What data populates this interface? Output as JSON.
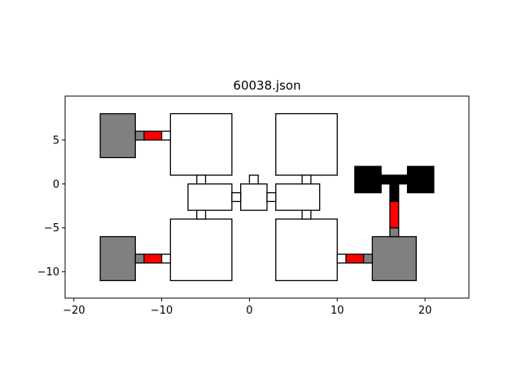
{
  "chart_data": {
    "type": "diagram-plot",
    "title": "60038.json",
    "xlim": [
      -21,
      25
    ],
    "ylim": [
      -13,
      10
    ],
    "xticks": [
      -20,
      -10,
      0,
      10,
      20
    ],
    "yticks": [
      5,
      0,
      -5,
      -10
    ],
    "grid": false,
    "legend": "none",
    "colors": {
      "room": "#ffffff",
      "gray_block": "#808080",
      "red_connector": "#ff0000",
      "black_block": "#000000",
      "outline": "#000000"
    },
    "rects": [
      {
        "x0": -9,
        "x1": -2,
        "y0": 1,
        "y1": 8,
        "fill": "room"
      },
      {
        "x0": 3,
        "x1": 10,
        "y0": 1,
        "y1": 8,
        "fill": "room"
      },
      {
        "x0": -9,
        "x1": -2,
        "y0": -11,
        "y1": -4,
        "fill": "room"
      },
      {
        "x0": 3,
        "x1": 10,
        "y0": -11,
        "y1": -4,
        "fill": "room"
      },
      {
        "x0": -7,
        "x1": -2,
        "y0": -3,
        "y1": 0,
        "fill": "room"
      },
      {
        "x0": -1,
        "x1": 2,
        "y0": -3,
        "y1": 0,
        "fill": "room"
      },
      {
        "x0": 3,
        "x1": 8,
        "y0": -3,
        "y1": 0,
        "fill": "room"
      },
      {
        "x0": -6,
        "x1": -5,
        "y0": 0,
        "y1": 1,
        "fill": "room"
      },
      {
        "x0": 6,
        "x1": 7,
        "y0": 0,
        "y1": 1,
        "fill": "room"
      },
      {
        "x0": -6,
        "x1": -5,
        "y0": -4,
        "y1": -3,
        "fill": "room"
      },
      {
        "x0": 6,
        "x1": 7,
        "y0": -4,
        "y1": -3,
        "fill": "room"
      },
      {
        "x0": 0,
        "x1": 1,
        "y0": 0,
        "y1": 1,
        "fill": "room"
      },
      {
        "x0": -2,
        "x1": -1,
        "y0": -2,
        "y1": -1,
        "fill": "room"
      },
      {
        "x0": 2,
        "x1": 3,
        "y0": -2,
        "y1": -1,
        "fill": "room"
      },
      {
        "x0": -17,
        "x1": -13,
        "y0": 3,
        "y1": 8,
        "fill": "gray_block"
      },
      {
        "x0": -13,
        "x1": -12,
        "y0": 5,
        "y1": 6,
        "fill": "gray_block"
      },
      {
        "x0": -12,
        "x1": -10,
        "y0": 5,
        "y1": 6,
        "fill": "red_connector"
      },
      {
        "x0": -10,
        "x1": -9,
        "y0": 5,
        "y1": 6,
        "fill": "room"
      },
      {
        "x0": -17,
        "x1": -13,
        "y0": -11,
        "y1": -6,
        "fill": "gray_block"
      },
      {
        "x0": -13,
        "x1": -12,
        "y0": -9,
        "y1": -8,
        "fill": "gray_block"
      },
      {
        "x0": -12,
        "x1": -10,
        "y0": -9,
        "y1": -8,
        "fill": "red_connector"
      },
      {
        "x0": -10,
        "x1": -9,
        "y0": -9,
        "y1": -8,
        "fill": "room"
      },
      {
        "x0": 14,
        "x1": 19,
        "y0": -11,
        "y1": -6,
        "fill": "gray_block"
      },
      {
        "x0": 10,
        "x1": 11,
        "y0": -9,
        "y1": -8,
        "fill": "room"
      },
      {
        "x0": 11,
        "x1": 13,
        "y0": -9,
        "y1": -8,
        "fill": "red_connector"
      },
      {
        "x0": 13,
        "x1": 14,
        "y0": -9,
        "y1": -8,
        "fill": "gray_block"
      },
      {
        "x0": 16,
        "x1": 17,
        "y0": -6,
        "y1": -5,
        "fill": "gray_block"
      },
      {
        "x0": 16,
        "x1": 17,
        "y0": -5,
        "y1": -2,
        "fill": "red_connector"
      },
      {
        "x0": 16,
        "x1": 17,
        "y0": -2,
        "y1": 0,
        "fill": "black_block"
      },
      {
        "x0": 12,
        "x1": 15,
        "y0": -1,
        "y1": 2,
        "fill": "black_block"
      },
      {
        "x0": 18,
        "x1": 21,
        "y0": -1,
        "y1": 2,
        "fill": "black_block"
      },
      {
        "x0": 15,
        "x1": 18,
        "y0": 0,
        "y1": 1,
        "fill": "black_block"
      }
    ]
  }
}
